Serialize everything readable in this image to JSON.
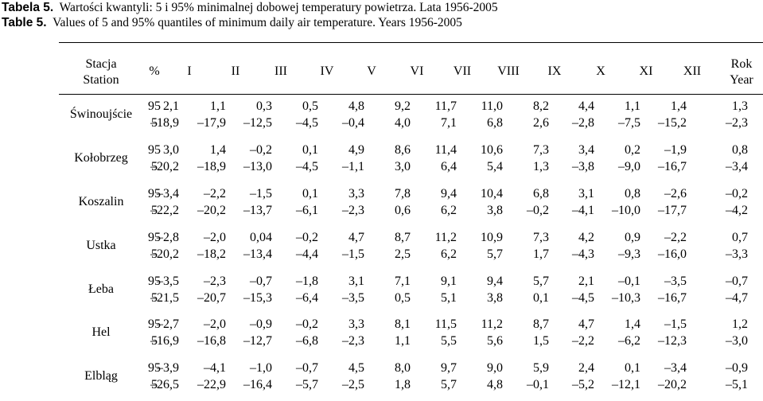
{
  "caption": {
    "label_pl": "Tabela 5.",
    "text_pl": "Wartości kwantyli: 5 i 95% minimalnej dobowej temperatury powietrza. Lata 1956-2005",
    "label_en": "Table 5.",
    "text_en": "Values of 5 and 95% quantiles of minimum daily air temperature. Years 1956-2005"
  },
  "header": {
    "station_pl": "Stacja",
    "station_en": "Station",
    "percent": "%",
    "months": [
      "I",
      "II",
      "III",
      "IV",
      "V",
      "VI",
      "VII",
      "VIII",
      "IX",
      "X",
      "XI",
      "XII"
    ],
    "year_pl": "Rok",
    "year_en": "Year"
  },
  "rows": [
    {
      "station": "Świnoujście",
      "q95": {
        "quantile": "95",
        "values": [
          "2,1",
          "1,1",
          "0,3",
          "0,5",
          "4,8",
          "9,2",
          "11,7",
          "11,0",
          "8,2",
          "4,4",
          "1,1",
          "1,4",
          "1,3"
        ]
      },
      "q5": {
        "quantile": "5",
        "values": [
          "–18,9",
          "–17,9",
          "–12,5",
          "–4,5",
          "–0,4",
          "4,0",
          "7,1",
          "6,8",
          "2,6",
          "–2,8",
          "–7,5",
          "–15,2",
          "–2,3"
        ]
      }
    },
    {
      "station": "Kołobrzeg",
      "q95": {
        "quantile": "95",
        "values": [
          "3,0",
          "1,4",
          "–0,2",
          "0,1",
          "4,9",
          "8,6",
          "11,4",
          "10,6",
          "7,3",
          "3,4",
          "0,2",
          "–1,9",
          "0,8"
        ]
      },
      "q5": {
        "quantile": "5",
        "values": [
          "–20,2",
          "–18,9",
          "–13,0",
          "–4,5",
          "–1,1",
          "3,0",
          "6,4",
          "5,4",
          "1,3",
          "–3,8",
          "–9,0",
          "–16,7",
          "–3,4"
        ]
      }
    },
    {
      "station": "Koszalin",
      "q95": {
        "quantile": "95",
        "values": [
          "–3,4",
          "–2,2",
          "–1,5",
          "0,1",
          "3,3",
          "7,8",
          "9,4",
          "10,4",
          "6,8",
          "3,1",
          "0,8",
          "–2,6",
          "–0,2"
        ]
      },
      "q5": {
        "quantile": "5",
        "values": [
          "–22,2",
          "–20,2",
          "–13,7",
          "–6,1",
          "–2,3",
          "0,6",
          "6,2",
          "3,8",
          "–0,2",
          "–4,1",
          "–10,0",
          "–17,7",
          "–4,2"
        ]
      }
    },
    {
      "station": "Ustka",
      "q95": {
        "quantile": "95",
        "values": [
          "–2,8",
          "–2,0",
          "0,04",
          "–0,2",
          "4,7",
          "8,7",
          "11,2",
          "10,9",
          "7,3",
          "4,2",
          "0,9",
          "–2,2",
          "0,7"
        ]
      },
      "q5": {
        "quantile": "5",
        "values": [
          "–20,2",
          "–18,2",
          "–13,4",
          "–4,4",
          "–1,5",
          "2,5",
          "6,2",
          "5,7",
          "1,7",
          "–4,3",
          "–9,3",
          "–16,0",
          "–3,3"
        ]
      }
    },
    {
      "station": "Łeba",
      "q95": {
        "quantile": "95",
        "values": [
          "–3,5",
          "–2,3",
          "–0,7",
          "–1,8",
          "3,1",
          "7,1",
          "9,1",
          "9,4",
          "5,7",
          "2,1",
          "–0,1",
          "–3,5",
          "–0,7"
        ]
      },
      "q5": {
        "quantile": "5",
        "values": [
          "–21,5",
          "–20,7",
          "–15,3",
          "–6,4",
          "–3,5",
          "0,5",
          "5,1",
          "3,8",
          "0,1",
          "–4,5",
          "–10,3",
          "–16,7",
          "–4,7"
        ]
      }
    },
    {
      "station": "Hel",
      "q95": {
        "quantile": "95",
        "values": [
          "–2,7",
          "–2,0",
          "–0,9",
          "–0,2",
          "3,3",
          "8,1",
          "11,5",
          "11,2",
          "8,7",
          "4,7",
          "1,4",
          "–1,5",
          "1,2"
        ]
      },
      "q5": {
        "quantile": "5",
        "values": [
          "–16,9",
          "–16,8",
          "–12,7",
          "–6,8",
          "–2,3",
          "1,1",
          "5,5",
          "5,6",
          "1,5",
          "–2,2",
          "–6,2",
          "–12,3",
          "–3,0"
        ]
      }
    },
    {
      "station": "Elbląg",
      "q95": {
        "quantile": "95",
        "values": [
          "–3,9",
          "–4,1",
          "–1,0",
          "–0,7",
          "4,5",
          "8,0",
          "9,7",
          "9,0",
          "5,9",
          "2,4",
          "0,1",
          "–3,4",
          "–0,9"
        ]
      },
      "q5": {
        "quantile": "5",
        "values": [
          "–26,5",
          "–22,9",
          "–16,4",
          "–5,7",
          "–2,5",
          "1,8",
          "5,7",
          "4,8",
          "–0,1",
          "–5,2",
          "–12,1",
          "–20,2",
          "–5,1"
        ]
      }
    }
  ]
}
